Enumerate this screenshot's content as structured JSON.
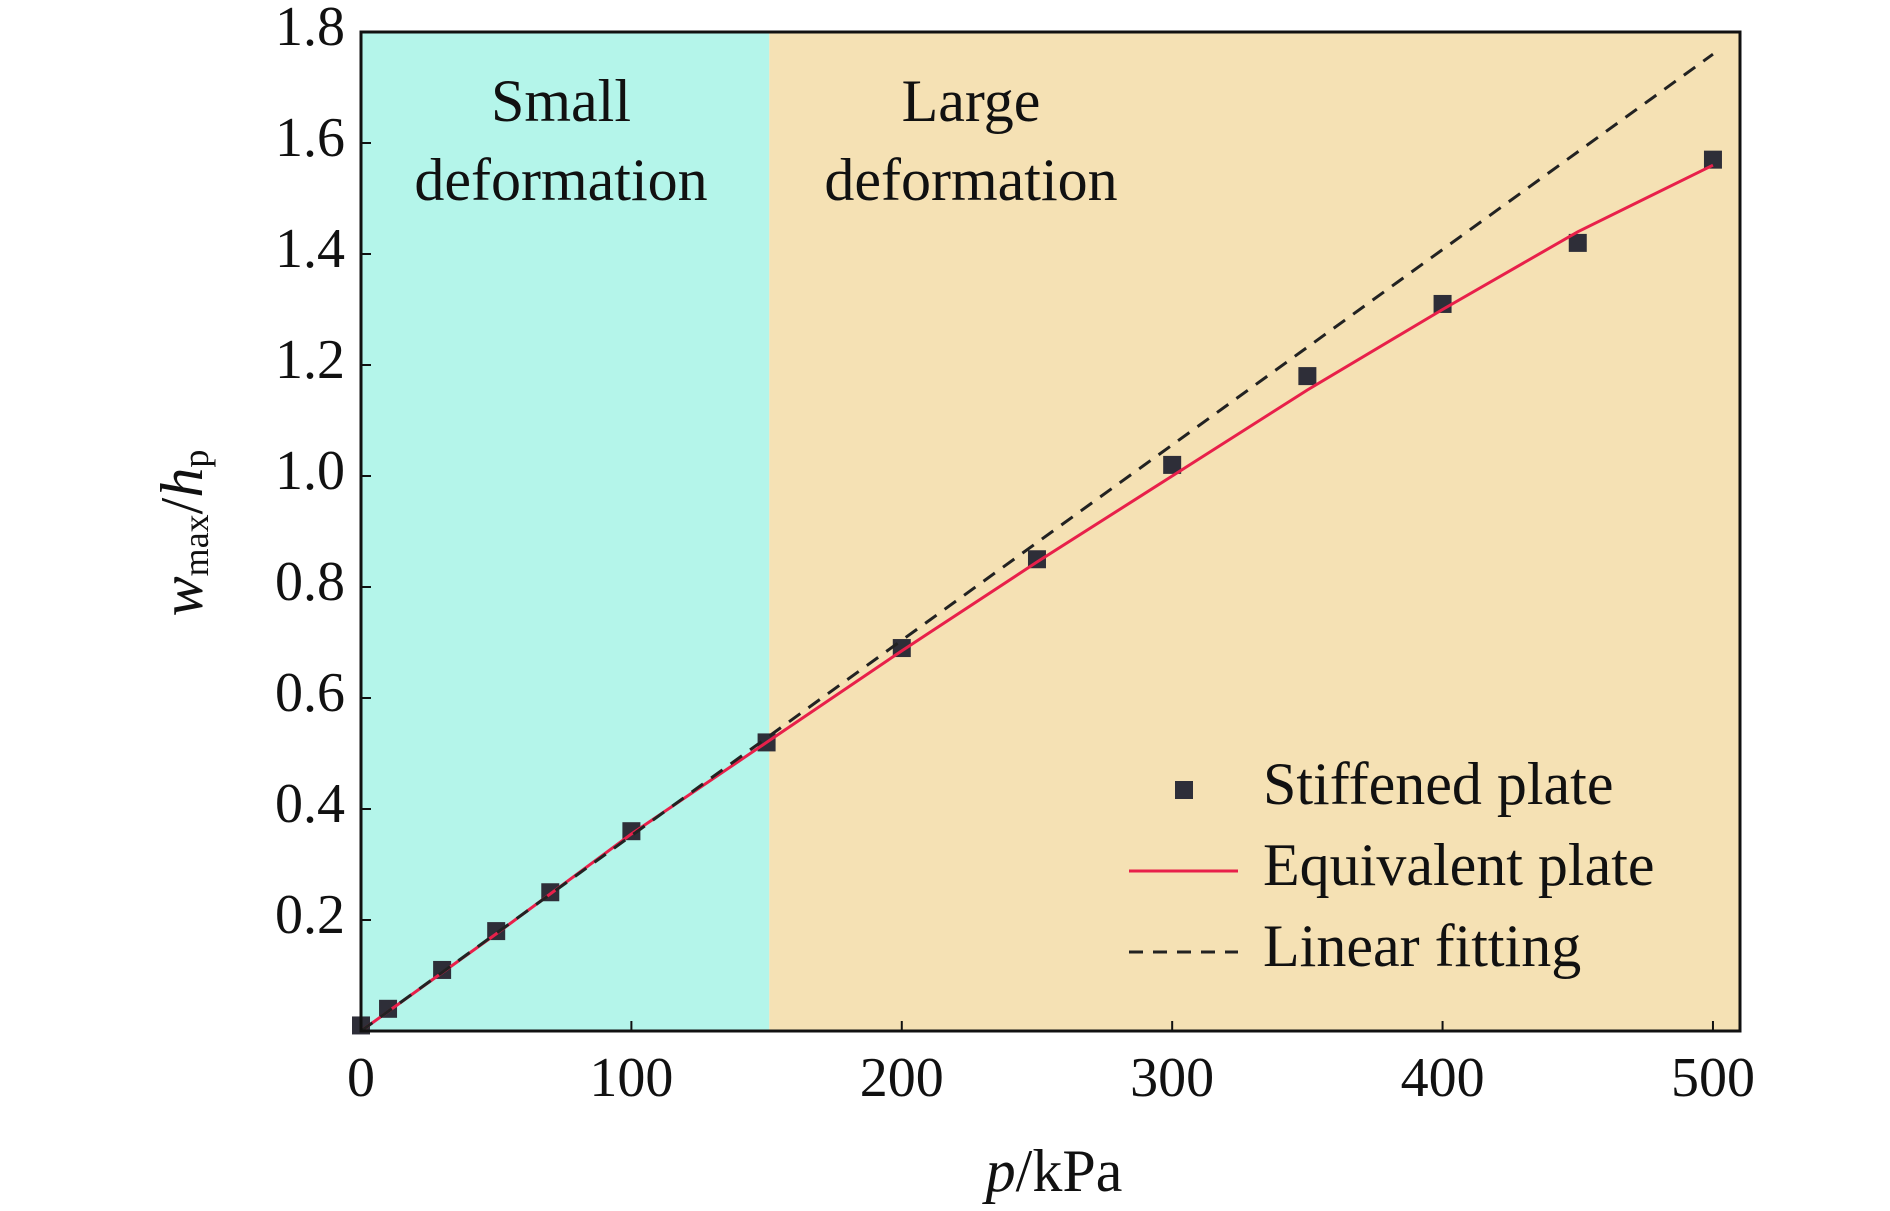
{
  "chart_data": {
    "type": "scatter_line",
    "xlabel_parts": [
      "p",
      "/kPa"
    ],
    "ylabel_parts": [
      "w",
      "max",
      "/",
      "h",
      "p"
    ],
    "xlim": [
      0,
      510
    ],
    "ylim": [
      0,
      1.8
    ],
    "xticks": [
      0,
      100,
      200,
      300,
      400,
      500
    ],
    "yticks": [
      0.2,
      0.4,
      0.6,
      0.8,
      {
        "value": 1,
        "label": "1.0"
      },
      1.2,
      1.4,
      1.6,
      1.8
    ],
    "regions": [
      {
        "label": [
          "Small",
          "deformation"
        ],
        "xlim": [
          0,
          151
        ],
        "color": "#b4f5ea"
      },
      {
        "label": [
          "Large",
          "deformation"
        ],
        "xlim": [
          151,
          510
        ],
        "color": "#f5e1b4"
      }
    ],
    "legend": "lower right",
    "series": [
      {
        "name": "Stiffened plate",
        "kind": "markers",
        "color": "#2e2e38",
        "x": [
          0,
          10,
          30,
          50,
          70,
          100,
          150,
          200,
          250,
          300,
          350,
          400,
          450,
          500
        ],
        "values": [
          0.01,
          0.04,
          0.11,
          0.18,
          0.25,
          0.36,
          0.52,
          0.69,
          0.85,
          1.02,
          1.18,
          1.31,
          1.42,
          1.57
        ]
      },
      {
        "name": "Equivalent plate",
        "kind": "solid",
        "color": "#e8204a",
        "x": [
          0,
          50,
          100,
          150,
          200,
          250,
          300,
          350,
          400,
          450,
          500
        ],
        "values": [
          0,
          0.175,
          0.355,
          0.52,
          0.685,
          0.845,
          1.0,
          1.155,
          1.3,
          1.44,
          1.56
        ]
      },
      {
        "name": "Linear fitting",
        "kind": "dashed",
        "color": "#222222",
        "x": [
          0,
          500
        ],
        "values": [
          0,
          1.76
        ]
      }
    ]
  }
}
